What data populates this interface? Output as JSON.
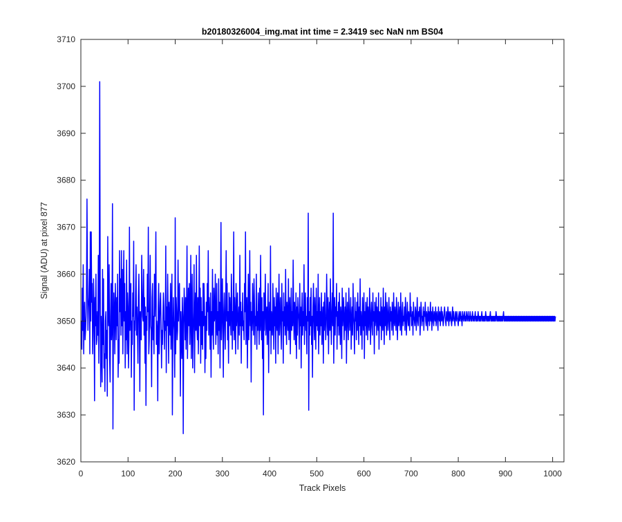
{
  "window": {
    "background": "#ffffff"
  },
  "chart_data": {
    "type": "line",
    "title": "b20180326004_img.mat int time = 2.3419 sec  NaN nm BS04",
    "xlabel": "Track Pixels",
    "ylabel": "Signal (ADU) at pixel 877",
    "xlim": [
      0,
      1024
    ],
    "ylim": [
      3620,
      3710
    ],
    "xticks": [
      0,
      100,
      200,
      300,
      400,
      500,
      600,
      700,
      800,
      900,
      1000
    ],
    "yticks": [
      3620,
      3630,
      3640,
      3650,
      3660,
      3670,
      3680,
      3690,
      3700,
      3710
    ],
    "grid": false,
    "legend": "none",
    "series": [
      {
        "color": "#0000ff",
        "x_start": 1,
        "x_step": 1,
        "values": [
          3650,
          3644,
          3657,
          3648,
          3662,
          3643,
          3651,
          3654,
          3646,
          3648,
          3651,
          3656,
          3676,
          3658,
          3648,
          3653,
          3655,
          3661,
          3643,
          3669,
          3650,
          3669,
          3654,
          3658,
          3643,
          3649,
          3659,
          3652,
          3633,
          3655,
          3649,
          3660,
          3645,
          3646,
          3652,
          3647,
          3664,
          3641,
          3655,
          3701,
          3658,
          3636,
          3651,
          3645,
          3637,
          3661,
          3645,
          3659,
          3640,
          3643,
          3635,
          3650,
          3652,
          3642,
          3648,
          3634,
          3668,
          3652,
          3649,
          3662,
          3642,
          3637,
          3651,
          3658,
          3646,
          3649,
          3675,
          3627,
          3647,
          3656,
          3652,
          3643,
          3658,
          3652,
          3646,
          3655,
          3649,
          3660,
          3638,
          3646,
          3641,
          3665,
          3652,
          3659,
          3647,
          3665,
          3649,
          3661,
          3643,
          3654,
          3665,
          3650,
          3658,
          3640,
          3652,
          3646,
          3663,
          3643,
          3656,
          3653,
          3640,
          3646,
          3670,
          3648,
          3653,
          3658,
          3638,
          3650,
          3645,
          3656,
          3651,
          3667,
          3631,
          3650,
          3648,
          3656,
          3662,
          3647,
          3653,
          3648,
          3641,
          3655,
          3660,
          3649,
          3635,
          3652,
          3647,
          3646,
          3664,
          3657,
          3651,
          3650,
          3661,
          3647,
          3655,
          3641,
          3653,
          3632,
          3651,
          3648,
          3660,
          3652,
          3670,
          3643,
          3646,
          3653,
          3664,
          3649,
          3648,
          3636,
          3655,
          3658,
          3646,
          3651,
          3643,
          3660,
          3651,
          3656,
          3669,
          3645,
          3650,
          3648,
          3633,
          3653,
          3658,
          3643,
          3649,
          3654,
          3656,
          3650,
          3640,
          3648,
          3645,
          3651,
          3656,
          3653,
          3644,
          3650,
          3648,
          3666,
          3639,
          3653,
          3649,
          3660,
          3651,
          3641,
          3654,
          3650,
          3647,
          3658,
          3644,
          3652,
          3660,
          3630,
          3646,
          3655,
          3650,
          3648,
          3638,
          3672,
          3643,
          3655,
          3652,
          3646,
          3648,
          3663,
          3650,
          3655,
          3658,
          3649,
          3634,
          3652,
          3647,
          3642,
          3655,
          3651,
          3626,
          3649,
          3657,
          3652,
          3646,
          3655,
          3644,
          3651,
          3666,
          3642,
          3650,
          3657,
          3649,
          3658,
          3645,
          3651,
          3664,
          3642,
          3653,
          3660,
          3640,
          3647,
          3652,
          3662,
          3639,
          3651,
          3656,
          3648,
          3664,
          3649,
          3646,
          3655,
          3643,
          3651,
          3666,
          3649,
          3657,
          3641,
          3655,
          3645,
          3652,
          3644,
          3658,
          3649,
          3658,
          3653,
          3639,
          3651,
          3642,
          3654,
          3648,
          3658,
          3652,
          3665,
          3647,
          3655,
          3651,
          3644,
          3656,
          3638,
          3652,
          3647,
          3661,
          3649,
          3644,
          3657,
          3650,
          3651,
          3660,
          3645,
          3649,
          3658,
          3647,
          3652,
          3643,
          3659,
          3648,
          3654,
          3640,
          3652,
          3671,
          3646,
          3651,
          3659,
          3649,
          3638,
          3652,
          3656,
          3649,
          3644,
          3654,
          3665,
          3650,
          3658,
          3646,
          3652,
          3641,
          3656,
          3649,
          3655,
          3650,
          3647,
          3660,
          3655,
          3644,
          3652,
          3648,
          3669,
          3646,
          3655,
          3651,
          3643,
          3658,
          3649,
          3652,
          3656,
          3644,
          3650,
          3653,
          3647,
          3664,
          3649,
          3654,
          3641,
          3652,
          3649,
          3656,
          3648,
          3650,
          3646,
          3658,
          3652,
          3669,
          3645,
          3652,
          3655,
          3640,
          3650,
          3660,
          3646,
          3652,
          3665,
          3649,
          3654,
          3637,
          3652,
          3648,
          3658,
          3651,
          3647,
          3659,
          3654,
          3645,
          3651,
          3649,
          3660,
          3644,
          3652,
          3648,
          3656,
          3651,
          3645,
          3657,
          3648,
          3664,
          3650,
          3646,
          3655,
          3642,
          3652,
          3630,
          3656,
          3648,
          3653,
          3660,
          3647,
          3651,
          3653,
          3645,
          3652,
          3658,
          3639,
          3650,
          3654,
          3648,
          3666,
          3643,
          3652,
          3650,
          3647,
          3658,
          3651,
          3644,
          3655,
          3649,
          3653,
          3641,
          3657,
          3650,
          3648,
          3656,
          3643,
          3652,
          3660,
          3647,
          3651,
          3655,
          3648,
          3644,
          3658,
          3650,
          3652,
          3641,
          3656,
          3649,
          3653,
          3647,
          3661,
          3650,
          3645,
          3654,
          3651,
          3648,
          3659,
          3646,
          3652,
          3655,
          3643,
          3650,
          3657,
          3648,
          3652,
          3649,
          3663,
          3651,
          3646,
          3654,
          3650,
          3645,
          3656,
          3642,
          3653,
          3647,
          3655,
          3652,
          3650,
          3644,
          3658,
          3649,
          3653,
          3640,
          3651,
          3656,
          3647,
          3652,
          3649,
          3662,
          3645,
          3652,
          3656,
          3648,
          3651,
          3643,
          3655,
          3650,
          3673,
          3631,
          3652,
          3647,
          3655,
          3649,
          3657,
          3645,
          3651,
          3638,
          3653,
          3658,
          3650,
          3646,
          3655,
          3651,
          3644,
          3657,
          3649,
          3652,
          3648,
          3660,
          3643,
          3651,
          3655,
          3647,
          3652,
          3649,
          3656,
          3645,
          3650,
          3653,
          3641,
          3654,
          3648,
          3656,
          3651,
          3646,
          3649,
          3660,
          3652,
          3647,
          3655,
          3643,
          3651,
          3654,
          3648,
          3659,
          3650,
          3645,
          3652,
          3656,
          3649,
          3673,
          3641,
          3650,
          3655,
          3647,
          3653,
          3651,
          3658,
          3644,
          3652,
          3649,
          3654,
          3647,
          3656,
          3650,
          3645,
          3653,
          3651,
          3642,
          3657,
          3649,
          3652,
          3655,
          3646,
          3650,
          3653,
          3648,
          3656,
          3641,
          3651,
          3654,
          3649,
          3646,
          3657,
          3652,
          3648,
          3651,
          3655,
          3644,
          3650,
          3653,
          3647,
          3658,
          3651,
          3649,
          3643,
          3655,
          3650,
          3652,
          3646,
          3654,
          3648,
          3656,
          3651,
          3645,
          3653,
          3649,
          3659,
          3647,
          3652,
          3650,
          3644,
          3655,
          3651,
          3648,
          3656,
          3642,
          3652,
          3649,
          3654,
          3647,
          3651,
          3655,
          3646,
          3653,
          3650,
          3648,
          3657,
          3652,
          3645,
          3651,
          3654,
          3649,
          3647,
          3656,
          3650,
          3652,
          3643,
          3654,
          3649,
          3651,
          3655,
          3647,
          3653,
          3650,
          3648,
          3656,
          3644,
          3652,
          3651,
          3649,
          3655,
          3646,
          3653,
          3650,
          3648,
          3657,
          3651,
          3645,
          3653,
          3649,
          3656,
          3650,
          3647,
          3654,
          3652,
          3648,
          3651,
          3655,
          3649,
          3646,
          3653,
          3650,
          3652,
          3648,
          3654,
          3651,
          3647,
          3656,
          3650,
          3649,
          3653,
          3651,
          3648,
          3655,
          3652,
          3646,
          3650,
          3654,
          3649,
          3651,
          3653,
          3648,
          3656,
          3650,
          3647,
          3652,
          3654,
          3649,
          3651,
          3650,
          3653,
          3648,
          3655,
          3652,
          3647,
          3650,
          3654,
          3651,
          3649,
          3652,
          3650,
          3648,
          3656,
          3651,
          3653,
          3649,
          3650,
          3652,
          3647,
          3654,
          3651,
          3650,
          3649,
          3653,
          3652,
          3648,
          3651,
          3655,
          3650,
          3649,
          3652,
          3651,
          3653,
          3647,
          3650,
          3654,
          3652,
          3649,
          3651,
          3650,
          3653,
          3648,
          3652,
          3651,
          3654,
          3650,
          3649,
          3652,
          3651,
          3648,
          3653,
          3650,
          3652,
          3649,
          3651,
          3654,
          3650,
          3652,
          3648,
          3651,
          3653,
          3650,
          3649,
          3652,
          3651,
          3650,
          3653,
          3649,
          3651,
          3652,
          3650,
          3648,
          3653,
          3651,
          3650,
          3652,
          3649,
          3651,
          3653,
          3650,
          3652,
          3651,
          3649,
          3650,
          3652,
          3653,
          3651,
          3650,
          3649,
          3652,
          3651,
          3650,
          3653,
          3651,
          3649,
          3652,
          3650,
          3651,
          3652,
          3650,
          3649,
          3651,
          3653,
          3650,
          3652,
          3651,
          3650,
          3649,
          3652,
          3651,
          3650,
          3652,
          3651,
          3650,
          3649,
          3651,
          3652,
          3650,
          3651,
          3652,
          3650,
          3651,
          3649,
          3652,
          3651,
          3650,
          3651,
          3652,
          3650,
          3651,
          3650,
          3652,
          3651,
          3650,
          3651,
          3652,
          3650,
          3651,
          3650,
          3652,
          3651,
          3650,
          3651,
          3650,
          3652,
          3651,
          3650,
          3651,
          3650,
          3651,
          3652,
          3650,
          3651,
          3650,
          3651,
          3650,
          3652,
          3651,
          3650,
          3651,
          3650,
          3651,
          3650,
          3651,
          3652,
          3650,
          3651,
          3650,
          3651,
          3650,
          3651,
          3650,
          3652,
          3651,
          3650,
          3651,
          3650,
          3651,
          3650,
          3651,
          3650,
          3651,
          3652,
          3650,
          3651,
          3650,
          3651,
          3650,
          3651,
          3650,
          3651,
          3650,
          3651,
          3650,
          3652,
          3651,
          3650,
          3651,
          3650,
          3651,
          3650,
          3651,
          3650,
          3651,
          3650,
          3651,
          3650,
          3651,
          3650,
          3651,
          3652,
          3650,
          3651,
          3650,
          3651,
          3650,
          3651,
          3650,
          3651,
          3650,
          3651,
          3650,
          3651,
          3650,
          3651,
          3650,
          3651,
          3650,
          3651,
          3650,
          3651,
          3650,
          3651,
          3650,
          3651,
          3650,
          3651,
          3650,
          3651,
          3650,
          3651,
          3650,
          3651,
          3650,
          3651,
          3650,
          3651,
          3650,
          3651,
          3650,
          3651,
          3650,
          3651,
          3650,
          3651,
          3650,
          3651,
          3650,
          3651,
          3650,
          3651,
          3650,
          3651,
          3650,
          3651,
          3650,
          3651,
          3650,
          3651,
          3650,
          3651,
          3650,
          3651,
          3650,
          3651,
          3650,
          3651,
          3650,
          3651,
          3650,
          3651,
          3650,
          3651,
          3650,
          3651,
          3650,
          3651,
          3650,
          3651,
          3650,
          3651,
          3650,
          3651,
          3650,
          3651,
          3650,
          3651,
          3650,
          3651,
          3650,
          3651,
          3650,
          3651,
          3650,
          3651,
          3650,
          3651,
          3650,
          3651,
          3650,
          3651,
          3650,
          3651,
          3650,
          3651,
          3650,
          3651,
          3650,
          3651,
          3650,
          3651
        ]
      }
    ]
  }
}
